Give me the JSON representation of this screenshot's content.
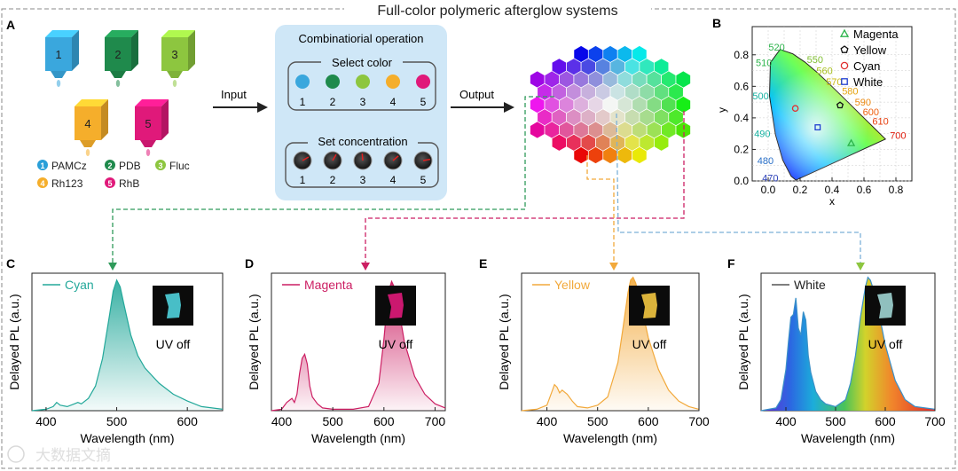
{
  "title": "Full-color polymeric afterglow systems",
  "watermark": "大数据文摘",
  "panels": {
    "A": "A",
    "B": "B",
    "C": "C",
    "D": "D",
    "E": "E",
    "F": "F"
  },
  "panel_a": {
    "vial_numbers": [
      "1",
      "2",
      "3",
      "4",
      "5"
    ],
    "vial_colors": [
      "#3aa7dd",
      "#1f8a4c",
      "#8dc63f",
      "#f5ae2b",
      "#e0197a"
    ],
    "dye_legend": [
      {
        "num": "1",
        "name": "PAMCz",
        "color": "#2a9fd8"
      },
      {
        "num": "2",
        "name": "PDB",
        "color": "#1f8a4c"
      },
      {
        "num": "3",
        "name": "Fluc",
        "color": "#8dc63f"
      },
      {
        "num": "4",
        "name": "Rh123",
        "color": "#f5ae2b"
      },
      {
        "num": "5",
        "name": "RhB",
        "color": "#e0197a"
      }
    ],
    "input_label": "Input",
    "output_label": "Output",
    "box_title": "Combinatiorial operation",
    "select_title": "Select color",
    "select_numbers": [
      "1",
      "2",
      "3",
      "4",
      "5"
    ],
    "concentration_title": "Set concentration",
    "concentration_numbers": [
      "1",
      "2",
      "3",
      "4",
      "5"
    ]
  },
  "cie": {
    "ylabel": "y",
    "xlabel": "x",
    "x_ticks": [
      "0.0",
      "0.2",
      "0.4",
      "0.6",
      "0.8"
    ],
    "y_ticks": [
      "0.0",
      "0.2",
      "0.4",
      "0.6",
      "0.8"
    ],
    "wavelength_labels": [
      "520",
      "510",
      "500",
      "490",
      "480",
      "470",
      "550",
      "560",
      "570",
      "580",
      "590",
      "600",
      "610",
      "700"
    ],
    "legend": [
      {
        "name": "Magenta",
        "marker": "triangle",
        "color": "#2bb34a"
      },
      {
        "name": "Yellow",
        "marker": "pentagon",
        "color": "#111111"
      },
      {
        "name": "Cyan",
        "marker": "circle",
        "color": "#e03030"
      },
      {
        "name": "White",
        "marker": "square",
        "color": "#1f3fd0"
      }
    ],
    "points": [
      {
        "name": "Magenta",
        "x": 0.52,
        "y": 0.24
      },
      {
        "name": "Yellow",
        "x": 0.45,
        "y": 0.48
      },
      {
        "name": "Cyan",
        "x": 0.17,
        "y": 0.46
      },
      {
        "name": "White",
        "x": 0.31,
        "y": 0.34
      }
    ]
  },
  "spectra": {
    "ylabel": "Delayed PL (a.u.)",
    "xlabel": "Wavelength (nm)",
    "uv_label": "UV off",
    "C": {
      "legend": "Cyan",
      "color": "#23a89a",
      "x_ticks": [
        "400",
        "500",
        "600"
      ]
    },
    "D": {
      "legend": "Magenta",
      "color": "#cc1f63",
      "x_ticks": [
        "400",
        "500",
        "600",
        "700"
      ]
    },
    "E": {
      "legend": "Yellow",
      "color": "#f2a93b",
      "x_ticks": [
        "400",
        "500",
        "600",
        "700"
      ]
    },
    "F": {
      "legend": "White",
      "color": "#555555",
      "x_ticks": [
        "400",
        "500",
        "600",
        "700"
      ]
    }
  },
  "chart_data": [
    {
      "type": "line",
      "title": "Cyan",
      "xlabel": "Wavelength (nm)",
      "ylabel": "Delayed PL (a.u.)",
      "xlim": [
        380,
        650
      ],
      "x": [
        380,
        400,
        410,
        415,
        420,
        430,
        440,
        445,
        450,
        460,
        470,
        480,
        490,
        495,
        500,
        505,
        510,
        520,
        530,
        540,
        560,
        580,
        600,
        620,
        650
      ],
      "values": [
        0,
        0.01,
        0.03,
        0.06,
        0.04,
        0.03,
        0.05,
        0.06,
        0.05,
        0.09,
        0.18,
        0.38,
        0.7,
        0.87,
        0.95,
        0.9,
        0.78,
        0.55,
        0.4,
        0.31,
        0.2,
        0.12,
        0.07,
        0.03,
        0.01
      ]
    },
    {
      "type": "line",
      "title": "Magenta",
      "xlabel": "Wavelength (nm)",
      "ylabel": "Delayed PL (a.u.)",
      "xlim": [
        380,
        720
      ],
      "x": [
        380,
        400,
        410,
        420,
        425,
        430,
        435,
        440,
        445,
        450,
        455,
        460,
        470,
        480,
        500,
        540,
        570,
        590,
        600,
        605,
        610,
        615,
        620,
        630,
        640,
        660,
        680,
        700,
        720
      ],
      "values": [
        0,
        0.01,
        0.06,
        0.09,
        0.06,
        0.12,
        0.27,
        0.38,
        0.41,
        0.34,
        0.18,
        0.1,
        0.05,
        0.02,
        0.01,
        0.01,
        0.03,
        0.2,
        0.52,
        0.72,
        0.88,
        0.94,
        0.9,
        0.72,
        0.5,
        0.25,
        0.12,
        0.05,
        0.02
      ]
    },
    {
      "type": "line",
      "title": "Yellow",
      "xlabel": "Wavelength (nm)",
      "ylabel": "Delayed PL (a.u.)",
      "xlim": [
        350,
        700
      ],
      "x": [
        350,
        380,
        400,
        410,
        415,
        420,
        425,
        430,
        440,
        450,
        460,
        480,
        500,
        520,
        540,
        550,
        560,
        565,
        570,
        575,
        580,
        590,
        600,
        620,
        640,
        660,
        680,
        700
      ],
      "values": [
        0,
        0.01,
        0.04,
        0.14,
        0.19,
        0.17,
        0.13,
        0.15,
        0.12,
        0.07,
        0.03,
        0.02,
        0.04,
        0.1,
        0.35,
        0.6,
        0.86,
        0.95,
        0.97,
        0.93,
        0.86,
        0.7,
        0.53,
        0.3,
        0.15,
        0.07,
        0.03,
        0.01
      ]
    },
    {
      "type": "line",
      "title": "White",
      "xlabel": "Wavelength (nm)",
      "ylabel": "Delayed PL (a.u.)",
      "xlim": [
        350,
        700
      ],
      "x": [
        350,
        380,
        390,
        400,
        405,
        410,
        415,
        420,
        425,
        430,
        435,
        440,
        445,
        450,
        460,
        470,
        480,
        500,
        520,
        530,
        540,
        550,
        560,
        565,
        570,
        580,
        590,
        600,
        620,
        640,
        660,
        700
      ],
      "values": [
        0,
        0.02,
        0.08,
        0.3,
        0.5,
        0.68,
        0.7,
        0.82,
        0.6,
        0.55,
        0.72,
        0.66,
        0.4,
        0.28,
        0.14,
        0.08,
        0.05,
        0.03,
        0.08,
        0.2,
        0.4,
        0.68,
        0.9,
        0.97,
        0.95,
        0.84,
        0.66,
        0.48,
        0.22,
        0.08,
        0.03,
        0.01
      ]
    }
  ]
}
